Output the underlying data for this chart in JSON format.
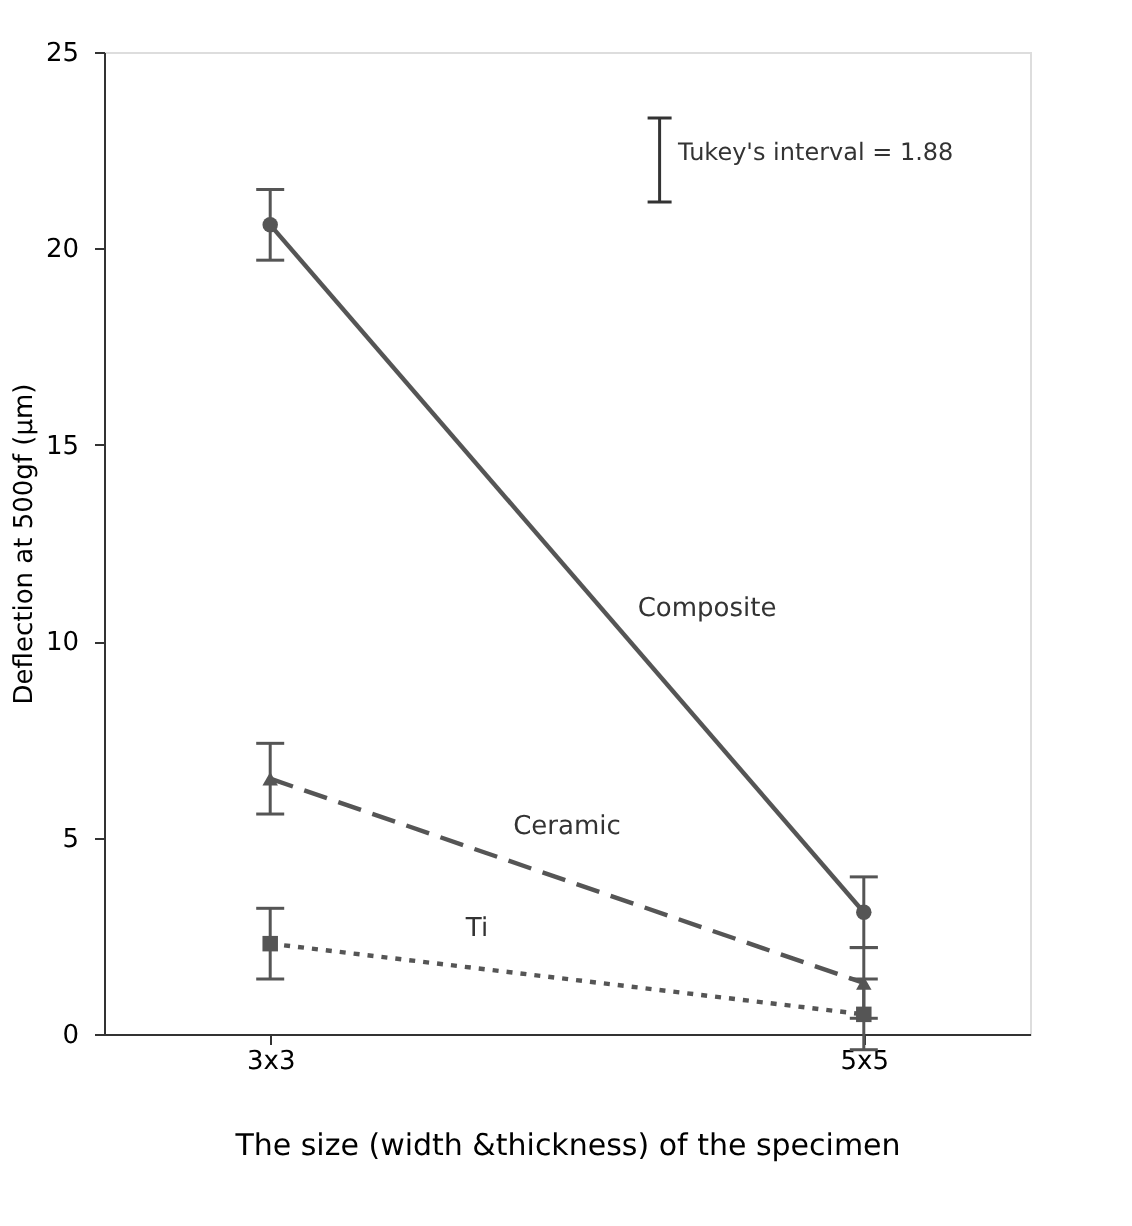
{
  "chart_data": {
    "type": "line",
    "xlabel": "The size (width &thickness) of the specimen",
    "ylabel": "Deflection at 500gf (μm)",
    "categories": [
      "3x3",
      "5x5"
    ],
    "ylim": [
      0,
      25
    ],
    "yticks": [
      0,
      5,
      10,
      15,
      20,
      25
    ],
    "grid": false,
    "legend": false,
    "series": [
      {
        "name": "Composite",
        "color": "#555555",
        "values": [
          20.6,
          3.1
        ],
        "errors": [
          0.9,
          0.9
        ],
        "marker": "circle",
        "line_style": "solid"
      },
      {
        "name": "Ceramic",
        "color": "#555555",
        "values": [
          6.5,
          1.3
        ],
        "errors": [
          0.9,
          0.9
        ],
        "marker": "triangle",
        "line_style": "dashed"
      },
      {
        "name": "Ti",
        "color": "#555555",
        "values": [
          2.3,
          0.5
        ],
        "errors": [
          0.9,
          0.9
        ],
        "marker": "square",
        "line_style": "dotted"
      }
    ],
    "annotations": [
      "Tukey's interval = 1.88"
    ]
  }
}
